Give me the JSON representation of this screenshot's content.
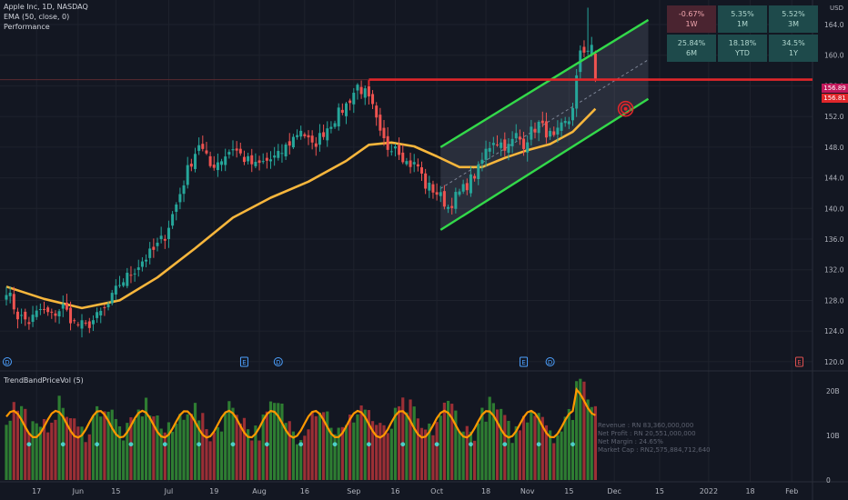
{
  "header": {
    "symbol_line": "Apple Inc, 1D, NASDAQ",
    "ema_line": "EMA (50, close, 0)",
    "performance_line": "Performance",
    "volume_indicator": "TrendBandPriceVol (5)",
    "currency": "USD"
  },
  "performance": [
    {
      "value": "-0.67%",
      "period": "1W",
      "positive": false
    },
    {
      "value": "5.35%",
      "period": "1M",
      "positive": true
    },
    {
      "value": "5.52%",
      "period": "3M",
      "positive": true
    },
    {
      "value": "25.84%",
      "period": "6M",
      "positive": true
    },
    {
      "value": "18.18%",
      "period": "YTD",
      "positive": true
    },
    {
      "value": "34.5%",
      "period": "1Y",
      "positive": true
    }
  ],
  "fundamentals": [
    "Revenue : RN 83,360,000,000",
    "Net Profit : RN 20,551,000,000",
    "Net Margin : 24.65%",
    "Market Cap : RN2,575,884,712,640"
  ],
  "price_labels": {
    "last": "156.89",
    "line": "156.81"
  },
  "events": [
    {
      "letter": "D",
      "x_index": 0
    },
    {
      "letter": "E",
      "x_index": 63
    },
    {
      "letter": "D",
      "x_index": 72
    },
    {
      "letter": "E",
      "x_index": 137
    },
    {
      "letter": "D",
      "x_index": 144
    },
    {
      "letter": "E",
      "x_index": 210
    }
  ],
  "colors": {
    "up": "#26a69a",
    "down": "#ef5350",
    "ema": "#f7b63c",
    "channel": "#33d94a",
    "resistance": "#e0262a",
    "vol_up": "#2e7d32",
    "vol_down": "#9b2f35"
  },
  "chart_data": {
    "type": "candlestick",
    "y_axis": {
      "ticks": [
        120,
        124,
        128,
        132,
        136,
        140,
        144,
        148,
        152,
        156,
        160,
        164
      ],
      "ylim": [
        118.8,
        167.2
      ]
    },
    "x_axis": {
      "ticks": [
        {
          "label": "17",
          "index": 8
        },
        {
          "label": "Jun",
          "index": 19
        },
        {
          "label": "15",
          "index": 29
        },
        {
          "label": "Jul",
          "index": 43
        },
        {
          "label": "19",
          "index": 55
        },
        {
          "label": "Aug",
          "index": 67
        },
        {
          "label": "16",
          "index": 79
        },
        {
          "label": "Sep",
          "index": 92
        },
        {
          "label": "16",
          "index": 103
        },
        {
          "label": "Oct",
          "index": 114
        },
        {
          "label": "18",
          "index": 127
        },
        {
          "label": "Nov",
          "index": 138
        },
        {
          "label": "15",
          "index": 149
        },
        {
          "label": "Dec",
          "index": 161
        },
        {
          "label": "15",
          "index": 173
        },
        {
          "label": "2022",
          "index": 186
        },
        {
          "label": "18",
          "index": 197
        },
        {
          "label": "Feb",
          "index": 208
        }
      ]
    },
    "ohlc_keypoints": [
      {
        "i": 0,
        "close": 129.5
      },
      {
        "i": 3,
        "close": 126.0
      },
      {
        "i": 6,
        "close": 125.2
      },
      {
        "i": 9,
        "close": 126.8
      },
      {
        "i": 12,
        "close": 126.0
      },
      {
        "i": 15,
        "close": 127.2
      },
      {
        "i": 18,
        "close": 125.0
      },
      {
        "i": 21,
        "close": 124.6
      },
      {
        "i": 24,
        "close": 125.8
      },
      {
        "i": 27,
        "close": 127.4
      },
      {
        "i": 30,
        "close": 130.2
      },
      {
        "i": 33,
        "close": 131.5
      },
      {
        "i": 36,
        "close": 133.2
      },
      {
        "i": 39,
        "close": 134.5
      },
      {
        "i": 42,
        "close": 136.5
      },
      {
        "i": 45,
        "close": 140.5
      },
      {
        "i": 48,
        "close": 145.0
      },
      {
        "i": 51,
        "close": 148.5
      },
      {
        "i": 54,
        "close": 145.5
      },
      {
        "i": 57,
        "close": 146.5
      },
      {
        "i": 60,
        "close": 148.0
      },
      {
        "i": 63,
        "close": 146.5
      },
      {
        "i": 66,
        "close": 145.5
      },
      {
        "i": 69,
        "close": 146.2
      },
      {
        "i": 72,
        "close": 146.8
      },
      {
        "i": 75,
        "close": 148.6
      },
      {
        "i": 78,
        "close": 150.4
      },
      {
        "i": 81,
        "close": 148.0
      },
      {
        "i": 84,
        "close": 150.0
      },
      {
        "i": 87,
        "close": 151.8
      },
      {
        "i": 90,
        "close": 153.5
      },
      {
        "i": 93,
        "close": 156.0
      },
      {
        "i": 95,
        "close": 155.0
      },
      {
        "i": 97,
        "close": 153.0
      },
      {
        "i": 99,
        "close": 149.5
      },
      {
        "i": 101,
        "close": 148.0
      },
      {
        "i": 103,
        "close": 148.5
      },
      {
        "i": 106,
        "close": 146.0
      },
      {
        "i": 109,
        "close": 145.5
      },
      {
        "i": 111,
        "close": 143.0
      },
      {
        "i": 113,
        "close": 142.5
      },
      {
        "i": 115,
        "close": 141.5
      },
      {
        "i": 117,
        "close": 140.2
      },
      {
        "i": 119,
        "close": 141.5
      },
      {
        "i": 121,
        "close": 142.5
      },
      {
        "i": 123,
        "close": 143.8
      },
      {
        "i": 125,
        "close": 145.0
      },
      {
        "i": 127,
        "close": 147.5
      },
      {
        "i": 129,
        "close": 149.0
      },
      {
        "i": 131,
        "close": 148.5
      },
      {
        "i": 133,
        "close": 148.0
      },
      {
        "i": 135,
        "close": 149.5
      },
      {
        "i": 137,
        "close": 148.5
      },
      {
        "i": 139,
        "close": 150.0
      },
      {
        "i": 141,
        "close": 151.0
      },
      {
        "i": 143,
        "close": 150.0
      },
      {
        "i": 145,
        "close": 149.0
      },
      {
        "i": 147,
        "close": 150.5
      },
      {
        "i": 149,
        "close": 151.5
      },
      {
        "i": 150,
        "close": 153.5
      },
      {
        "i": 151,
        "close": 157.0
      },
      {
        "i": 152,
        "close": 160.0
      },
      {
        "i": 154,
        "close": 161.0
      },
      {
        "i": 155,
        "close": 161.5
      },
      {
        "i": 156,
        "close": 156.81
      }
    ],
    "ema_keypoints": [
      {
        "i": 0,
        "v": 129.8
      },
      {
        "i": 10,
        "v": 128.2
      },
      {
        "i": 20,
        "v": 127.0
      },
      {
        "i": 30,
        "v": 128.0
      },
      {
        "i": 40,
        "v": 131.0
      },
      {
        "i": 50,
        "v": 134.8
      },
      {
        "i": 60,
        "v": 138.8
      },
      {
        "i": 70,
        "v": 141.4
      },
      {
        "i": 80,
        "v": 143.5
      },
      {
        "i": 90,
        "v": 146.2
      },
      {
        "i": 96,
        "v": 148.3
      },
      {
        "i": 102,
        "v": 148.6
      },
      {
        "i": 108,
        "v": 148.1
      },
      {
        "i": 114,
        "v": 146.8
      },
      {
        "i": 120,
        "v": 145.4
      },
      {
        "i": 126,
        "v": 145.4
      },
      {
        "i": 132,
        "v": 146.6
      },
      {
        "i": 138,
        "v": 147.6
      },
      {
        "i": 144,
        "v": 148.4
      },
      {
        "i": 150,
        "v": 150.0
      },
      {
        "i": 154,
        "v": 152.0
      },
      {
        "i": 156,
        "v": 153.0
      }
    ],
    "channel": {
      "lower": {
        "start": {
          "i": 115,
          "v": 137.2
        },
        "end": {
          "i": 170,
          "v": 154.3
        }
      },
      "upper": {
        "start": {
          "i": 115,
          "v": 148.0
        },
        "end": {
          "i": 170,
          "v": 164.6
        }
      },
      "mid": {
        "start": {
          "i": 115,
          "v": 142.6
        },
        "end": {
          "i": 170,
          "v": 159.4
        }
      }
    },
    "resistance": {
      "start_index": 96,
      "value": 156.81
    },
    "target_marker": {
      "i": 164,
      "v": 153.0
    },
    "volume": {
      "ylim": [
        0,
        22
      ],
      "ticks": [
        {
          "label": "0",
          "v": 0
        },
        {
          "label": "10B",
          "v": 10
        },
        {
          "label": "20B",
          "v": 20
        }
      ]
    }
  }
}
